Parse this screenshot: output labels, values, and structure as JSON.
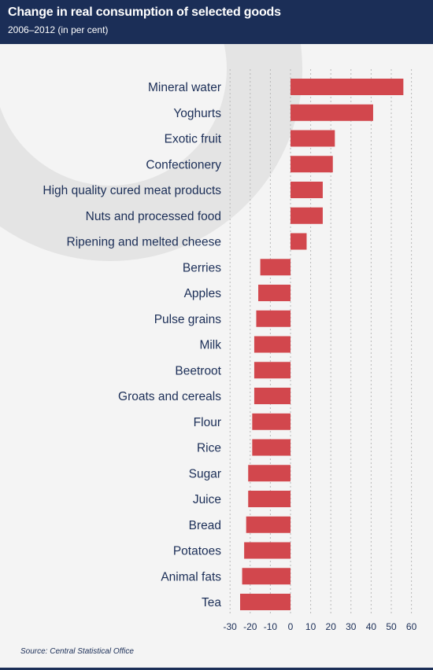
{
  "header": {
    "title": "Change in real consumption of selected goods",
    "subtitle": "2006–2012 (in per cent)"
  },
  "footer": {
    "source": "Source: Central Statistical Office"
  },
  "colors": {
    "header_bg": "#1b2e57",
    "bar": "#d2474d",
    "text": "#1b2e57",
    "grid": "#b8b8b8",
    "background": "#f4f4f4",
    "watermark": "#e2e2e2"
  },
  "chart_data": {
    "type": "bar",
    "orientation": "horizontal",
    "title": "Change in real consumption of selected goods",
    "subtitle": "2006–2012 (in per cent)",
    "categories": [
      "Mineral water",
      "Yoghurts",
      "Exotic fruit",
      "Confectionery",
      "High quality cured meat products",
      "Nuts and processed food",
      "Ripening and melted cheese",
      "Berries",
      "Apples",
      "Pulse grains",
      "Milk",
      "Beetroot",
      "Groats and cereals",
      "Flour",
      "Rice",
      "Sugar",
      "Juice",
      "Bread",
      "Potatoes",
      "Animal fats",
      "Tea"
    ],
    "values": [
      56,
      41,
      22,
      21,
      16,
      16,
      8,
      -15,
      -16,
      -17,
      -18,
      -18,
      -18,
      -19,
      -19,
      -21,
      -21,
      -22,
      -23,
      -24,
      -25
    ],
    "xticks": [
      -30,
      -20,
      -10,
      0,
      10,
      20,
      30,
      40,
      50,
      60
    ],
    "xlim": [
      -30,
      65
    ],
    "grid": "vertical-dashed",
    "legend": "none"
  }
}
